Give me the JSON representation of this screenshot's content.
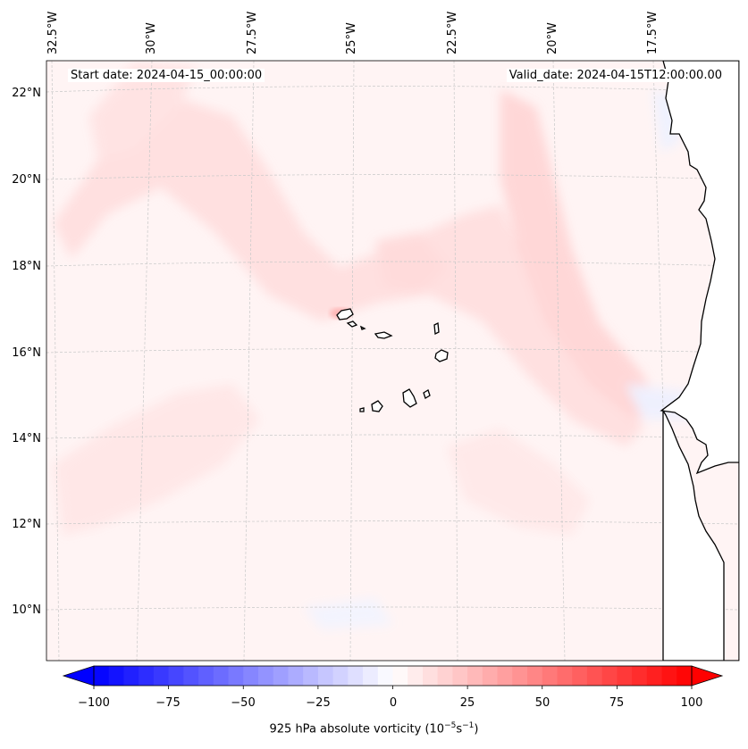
{
  "header": {
    "start_date": "Start date: 2024-04-15_00:00:00",
    "valid_date": "Valid_date: 2024-04-15T12:00:00.00"
  },
  "axes": {
    "longitude_labels": [
      "32.5°W",
      "30°W",
      "27.5°W",
      "25°W",
      "22.5°W",
      "20°W",
      "17.5°W"
    ],
    "latitude_labels": [
      "22°N",
      "20°N",
      "18°N",
      "16°N",
      "14°N",
      "12°N",
      "10°N"
    ]
  },
  "colorbar": {
    "min": -100,
    "max": 100,
    "ticks": [
      "−100",
      "−75",
      "−50",
      "−25",
      "0",
      "25",
      "50",
      "75",
      "100"
    ],
    "tick_values": [
      -100,
      -75,
      -50,
      -25,
      0,
      25,
      50,
      75,
      100
    ],
    "label_prefix": "925 hPa absolute vorticity (10",
    "label_sup1": "−5",
    "label_mid": "s",
    "label_sup2": "−1",
    "label_suffix": ")",
    "negative_color": "#0000ff",
    "positive_color": "#ff0000"
  },
  "colors": {
    "coastline": "#000000",
    "gridline": "#c8c8c8",
    "background_field": "#fff3f3"
  }
}
